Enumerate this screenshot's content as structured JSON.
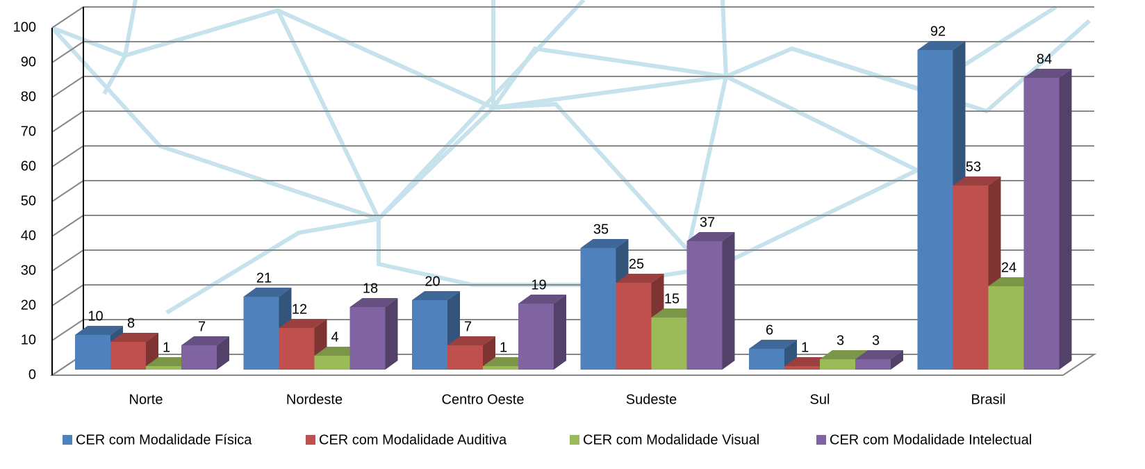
{
  "chart_data": {
    "type": "bar",
    "categories": [
      "Norte",
      "Nordeste",
      "Centro Oeste",
      "Sudeste",
      "Sul",
      "Brasil"
    ],
    "series": [
      {
        "name": "CER com Modalidade Física",
        "color": "#4f81bd",
        "values": [
          10,
          21,
          20,
          35,
          6,
          92
        ]
      },
      {
        "name": "CER com Modalidade Auditiva",
        "color": "#c0504d",
        "values": [
          8,
          12,
          7,
          25,
          1,
          53
        ]
      },
      {
        "name": "CER com Modalidade Visual",
        "color": "#9bbb59",
        "values": [
          1,
          4,
          1,
          15,
          3,
          24
        ]
      },
      {
        "name": "CER com Modalidade Intelectual",
        "color": "#8064a2",
        "values": [
          7,
          18,
          19,
          37,
          3,
          84
        ]
      }
    ],
    "ylim": [
      0,
      100
    ],
    "yticks": [
      0,
      10,
      20,
      30,
      40,
      50,
      60,
      70,
      80,
      90,
      100
    ],
    "grid": true,
    "legend": "bottom"
  }
}
